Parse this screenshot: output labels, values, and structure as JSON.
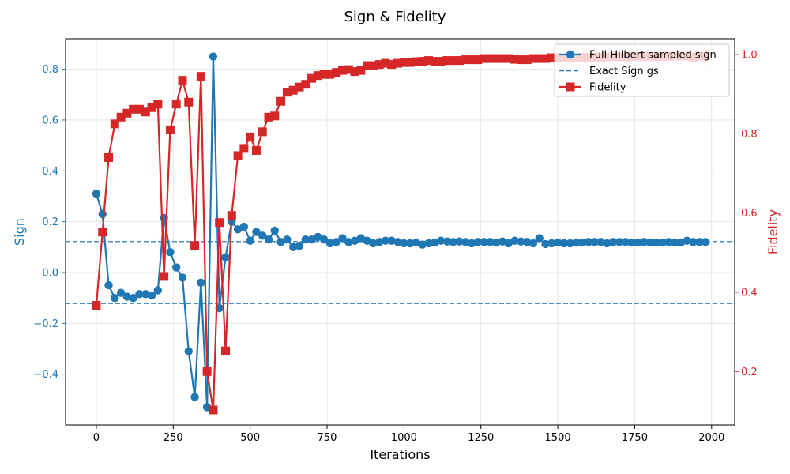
{
  "chart_data": {
    "type": "line",
    "title": "Sign & Fidelity",
    "xlabel": "Iterations",
    "ylabel_left": "Sign",
    "ylabel_right": "Fidelity",
    "xlim": [
      -100,
      2075
    ],
    "ylim_left": [
      -0.6,
      0.92
    ],
    "ylim_right": [
      0.065,
      1.04
    ],
    "x_ticks": [
      0,
      250,
      500,
      750,
      1000,
      1250,
      1500,
      1750,
      2000
    ],
    "x_tick_labels": [
      "0",
      "250",
      "500",
      "750",
      "1000",
      "1250",
      "1500",
      "1750",
      "2000"
    ],
    "y_left_ticks": [
      -0.4,
      -0.2,
      0.0,
      0.2,
      0.4,
      0.6,
      0.8
    ],
    "y_left_tick_labels": [
      "−0.4",
      "−0.2",
      "0.0",
      "0.2",
      "0.4",
      "0.6",
      "0.8"
    ],
    "y_right_ticks": [
      0.2,
      0.4,
      0.6,
      0.8,
      1.0
    ],
    "y_right_tick_labels": [
      "0.2",
      "0.4",
      "0.6",
      "0.8",
      "1.0"
    ],
    "grid": true,
    "legend_position": "top-right",
    "colors": {
      "sign": "#1f77b4",
      "fidelity": "#d62728",
      "exact": "#1f77b4"
    },
    "x": [
      0,
      20,
      40,
      60,
      80,
      100,
      120,
      140,
      160,
      180,
      200,
      220,
      240,
      260,
      280,
      300,
      320,
      340,
      360,
      380,
      400,
      420,
      440,
      460,
      480,
      500,
      520,
      540,
      560,
      580,
      600,
      620,
      640,
      660,
      680,
      700,
      720,
      740,
      760,
      780,
      800,
      820,
      840,
      860,
      880,
      900,
      920,
      940,
      960,
      980,
      1000,
      1020,
      1040,
      1060,
      1080,
      1100,
      1120,
      1140,
      1160,
      1180,
      1200,
      1220,
      1240,
      1260,
      1280,
      1300,
      1320,
      1340,
      1360,
      1380,
      1400,
      1420,
      1440,
      1460,
      1480,
      1500,
      1520,
      1540,
      1560,
      1580,
      1600,
      1620,
      1640,
      1660,
      1680,
      1700,
      1720,
      1740,
      1760,
      1780,
      1800,
      1820,
      1840,
      1860,
      1880,
      1900,
      1920,
      1940,
      1960,
      1980
    ],
    "series": [
      {
        "name": "Full Hilbert sampled sign",
        "axis": "left",
        "marker": "circle",
        "values": [
          0.31,
          0.23,
          -0.05,
          -0.1,
          -0.08,
          -0.095,
          -0.1,
          -0.085,
          -0.085,
          -0.09,
          -0.07,
          0.215,
          0.08,
          0.02,
          -0.02,
          -0.31,
          -0.49,
          -0.04,
          -0.53,
          0.85,
          -0.14,
          0.06,
          0.2,
          0.17,
          0.18,
          0.125,
          0.16,
          0.145,
          0.13,
          0.165,
          0.12,
          0.13,
          0.1,
          0.105,
          0.13,
          0.13,
          0.14,
          0.13,
          0.115,
          0.12,
          0.135,
          0.12,
          0.125,
          0.135,
          0.125,
          0.115,
          0.12,
          0.125,
          0.125,
          0.12,
          0.115,
          0.115,
          0.118,
          0.11,
          0.115,
          0.118,
          0.125,
          0.122,
          0.12,
          0.122,
          0.12,
          0.115,
          0.12,
          0.12,
          0.12,
          0.118,
          0.122,
          0.115,
          0.125,
          0.122,
          0.12,
          0.115,
          0.135,
          0.112,
          0.115,
          0.118,
          0.115,
          0.115,
          0.118,
          0.118,
          0.12,
          0.12,
          0.12,
          0.115,
          0.12,
          0.12,
          0.12,
          0.118,
          0.118,
          0.12,
          0.118,
          0.118,
          0.118,
          0.12,
          0.118,
          0.118,
          0.125,
          0.12,
          0.12,
          0.12
        ]
      },
      {
        "name": "Exact Sign gs",
        "axis": "left",
        "style": "dashed",
        "hlines": [
          0.122,
          -0.122
        ]
      },
      {
        "name": "Fidelity",
        "axis": "right",
        "marker": "square",
        "values": [
          0.367,
          0.552,
          0.74,
          0.825,
          0.842,
          0.852,
          0.862,
          0.862,
          0.855,
          0.866,
          0.875,
          0.44,
          0.81,
          0.875,
          0.935,
          0.88,
          0.518,
          0.945,
          0.2,
          0.103,
          0.576,
          0.252,
          0.594,
          0.745,
          0.763,
          0.792,
          0.758,
          0.805,
          0.842,
          0.845,
          0.882,
          0.905,
          0.91,
          0.918,
          0.925,
          0.94,
          0.947,
          0.95,
          0.95,
          0.955,
          0.96,
          0.962,
          0.957,
          0.96,
          0.972,
          0.972,
          0.975,
          0.978,
          0.975,
          0.978,
          0.98,
          0.98,
          0.982,
          0.983,
          0.985,
          0.983,
          0.983,
          0.985,
          0.985,
          0.985,
          0.987,
          0.987,
          0.987,
          0.99,
          0.99,
          0.99,
          0.99,
          0.99,
          0.988,
          0.987,
          0.987,
          0.99,
          0.99,
          0.99,
          0.992,
          0.992,
          0.992,
          0.992,
          0.992,
          0.993,
          0.993,
          0.993,
          0.993,
          0.994,
          0.995,
          0.994,
          0.994,
          0.995,
          0.995,
          0.995,
          0.995,
          0.995,
          0.995,
          0.996,
          0.996,
          0.996,
          0.996,
          0.993,
          0.996,
          0.996
        ]
      }
    ]
  }
}
